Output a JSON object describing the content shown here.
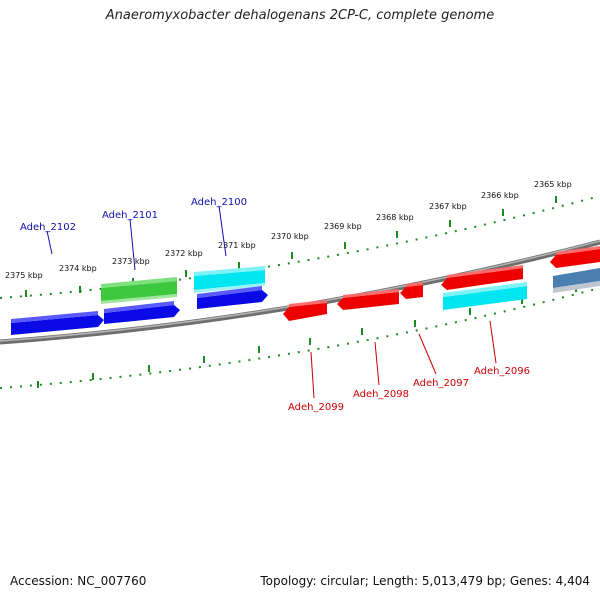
{
  "title": "Anaeromyxobacter dehalogenans 2CP-C, complete genome",
  "accession": "Accession: NC_007760",
  "summary": "Topology: circular; Length: 5,013,479 bp; Genes: 4,404",
  "colors": {
    "backbone": "#8a8a8a",
    "ticks": "#1f8a1f",
    "forward_label": "#1010b0",
    "reverse_label": "#cc0000",
    "gene_red": "#ee0000",
    "gene_blue": "#0a0ae6",
    "gene_cyan": "#00e6f0",
    "gene_green": "#3ec83e",
    "gene_steel": "#4a7fb0"
  },
  "scale_labels": [
    "2375 kbp",
    "2374 kbp",
    "2373 kbp",
    "2372 kbp",
    "2371 kbp",
    "2370 kbp",
    "2369 kbp",
    "2368 kbp",
    "2367 kbp",
    "2366 kbp",
    "2365 kbp"
  ],
  "forward_genes": [
    "Adeh_2102",
    "Adeh_2101",
    "Adeh_2100"
  ],
  "reverse_genes": [
    "Adeh_2099",
    "Adeh_2098",
    "Adeh_2097",
    "Adeh_2096"
  ]
}
